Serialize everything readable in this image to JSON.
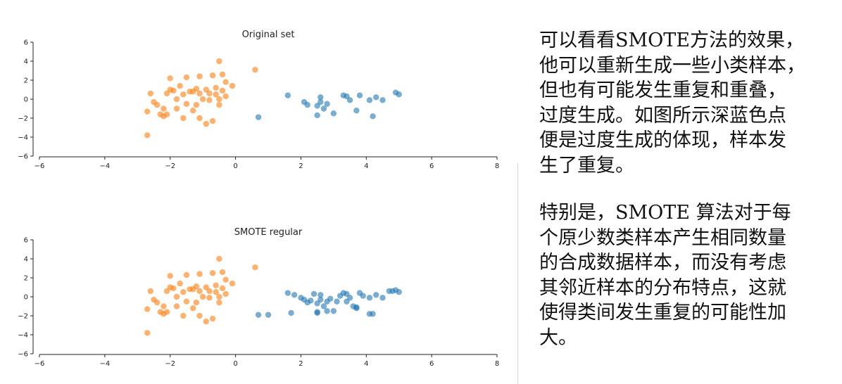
{
  "colors": {
    "minority": "#1f77b4",
    "majority": "#ff7f0e",
    "axis": "#222222"
  },
  "chart_data": [
    {
      "type": "scatter",
      "title": "Original set",
      "xlim": [
        -6,
        8
      ],
      "ylim": [
        -6,
        6
      ],
      "xticks": [
        "−6",
        "−4",
        "−2",
        "0",
        "2",
        "4",
        "6",
        "8"
      ],
      "xtick_values": [
        -6,
        -4,
        -2,
        0,
        2,
        4,
        6,
        8
      ],
      "yticks": [
        "6",
        "4",
        "2",
        "0",
        "−2",
        "−4",
        "−6"
      ],
      "ytick_values": [
        6,
        4,
        2,
        0,
        -2,
        -4,
        -6
      ],
      "grid": false,
      "series": [
        {
          "color": "#ff7f0e",
          "points": [
            [
              -2.7,
              -3.8
            ],
            [
              -2.6,
              0.6
            ],
            [
              -2.7,
              -1.3
            ],
            [
              -2.5,
              -0.3
            ],
            [
              -2.4,
              -0.6
            ],
            [
              -2.3,
              -1.6
            ],
            [
              -2.2,
              -1.0
            ],
            [
              -2.2,
              -1.8
            ],
            [
              -2.1,
              0.6
            ],
            [
              -2.1,
              -1.6
            ],
            [
              -2.0,
              1.0
            ],
            [
              -2.0,
              2.2
            ],
            [
              -1.9,
              0.9
            ],
            [
              -1.8,
              0.0
            ],
            [
              -1.8,
              -1.0
            ],
            [
              -1.7,
              1.4
            ],
            [
              -1.6,
              0.5
            ],
            [
              -1.6,
              -2.0
            ],
            [
              -1.5,
              2.3
            ],
            [
              -1.5,
              -0.5
            ],
            [
              -1.4,
              0.8
            ],
            [
              -1.3,
              0.8
            ],
            [
              -1.3,
              -1.2
            ],
            [
              -1.2,
              1.1
            ],
            [
              -1.2,
              -0.6
            ],
            [
              -1.1,
              0.6
            ],
            [
              -1.1,
              2.4
            ],
            [
              -1.1,
              -2.0
            ],
            [
              -1.0,
              0.0
            ],
            [
              -0.9,
              1.0
            ],
            [
              -0.9,
              -2.6
            ],
            [
              -0.8,
              0.6
            ],
            [
              -0.8,
              -0.1
            ],
            [
              -0.7,
              2.5
            ],
            [
              -0.7,
              -2.3
            ],
            [
              -0.6,
              0.5
            ],
            [
              -0.6,
              1.2
            ],
            [
              -0.5,
              4.0
            ],
            [
              -0.5,
              -0.6
            ],
            [
              -0.5,
              0.0
            ],
            [
              -0.4,
              0.9
            ],
            [
              -0.4,
              2.6
            ],
            [
              -0.3,
              1.8
            ],
            [
              -0.3,
              0.3
            ],
            [
              -0.1,
              1.4
            ],
            [
              0.6,
              3.1
            ]
          ]
        },
        {
          "color": "#1f77b4",
          "points": [
            [
              0.7,
              -1.9
            ],
            [
              1.6,
              0.4
            ],
            [
              2.1,
              -0.3
            ],
            [
              2.2,
              -0.6
            ],
            [
              2.5,
              -0.7
            ],
            [
              2.5,
              -1.7
            ],
            [
              2.6,
              0.2
            ],
            [
              2.6,
              -0.3
            ],
            [
              2.7,
              -1.0
            ],
            [
              2.8,
              -0.5
            ],
            [
              3.0,
              -1.5
            ],
            [
              3.3,
              0.4
            ],
            [
              3.4,
              0.3
            ],
            [
              3.5,
              -0.1
            ],
            [
              3.7,
              -1.2
            ],
            [
              3.8,
              0.4
            ],
            [
              4.1,
              -0.1
            ],
            [
              4.2,
              -1.8
            ],
            [
              4.3,
              0.2
            ],
            [
              4.5,
              -0.1
            ],
            [
              4.9,
              0.7
            ],
            [
              5.0,
              0.5
            ]
          ]
        }
      ]
    },
    {
      "type": "scatter",
      "title": "SMOTE regular",
      "xlim": [
        -6,
        8
      ],
      "ylim": [
        -6,
        6
      ],
      "xticks": [
        "−6",
        "−4",
        "−2",
        "0",
        "2",
        "4",
        "6",
        "8"
      ],
      "xtick_values": [
        -6,
        -4,
        -2,
        0,
        2,
        4,
        6,
        8
      ],
      "yticks": [
        "6",
        "4",
        "2",
        "0",
        "−2",
        "−4",
        "−6"
      ],
      "ytick_values": [
        6,
        4,
        2,
        0,
        -2,
        -4,
        -6
      ],
      "grid": false,
      "series": [
        {
          "color": "#ff7f0e",
          "points": [
            [
              -2.7,
              -3.8
            ],
            [
              -2.6,
              0.6
            ],
            [
              -2.7,
              -1.3
            ],
            [
              -2.5,
              -0.3
            ],
            [
              -2.4,
              -0.6
            ],
            [
              -2.3,
              -1.6
            ],
            [
              -2.2,
              -1.0
            ],
            [
              -2.2,
              -1.8
            ],
            [
              -2.1,
              0.6
            ],
            [
              -2.1,
              -1.6
            ],
            [
              -2.0,
              1.0
            ],
            [
              -2.0,
              2.2
            ],
            [
              -1.9,
              0.9
            ],
            [
              -1.8,
              0.0
            ],
            [
              -1.8,
              -1.0
            ],
            [
              -1.7,
              1.4
            ],
            [
              -1.6,
              0.5
            ],
            [
              -1.6,
              -2.0
            ],
            [
              -1.5,
              2.3
            ],
            [
              -1.5,
              -0.5
            ],
            [
              -1.4,
              0.8
            ],
            [
              -1.3,
              0.8
            ],
            [
              -1.3,
              -1.2
            ],
            [
              -1.2,
              1.1
            ],
            [
              -1.2,
              -0.6
            ],
            [
              -1.1,
              0.6
            ],
            [
              -1.1,
              2.4
            ],
            [
              -1.1,
              -2.0
            ],
            [
              -1.0,
              0.0
            ],
            [
              -0.9,
              1.0
            ],
            [
              -0.9,
              -2.6
            ],
            [
              -0.8,
              0.6
            ],
            [
              -0.8,
              -0.1
            ],
            [
              -0.7,
              2.5
            ],
            [
              -0.7,
              -2.3
            ],
            [
              -0.6,
              0.5
            ],
            [
              -0.6,
              1.2
            ],
            [
              -0.5,
              4.0
            ],
            [
              -0.5,
              -0.6
            ],
            [
              -0.5,
              0.0
            ],
            [
              -0.4,
              0.9
            ],
            [
              -0.4,
              2.6
            ],
            [
              -0.3,
              1.8
            ],
            [
              -0.3,
              0.3
            ],
            [
              -0.1,
              1.4
            ],
            [
              0.6,
              3.1
            ]
          ]
        },
        {
          "color": "#1f77b4",
          "points": [
            [
              0.7,
              -1.9
            ],
            [
              1.0,
              -1.9
            ],
            [
              1.6,
              0.4
            ],
            [
              1.7,
              -1.7
            ],
            [
              1.8,
              0.2
            ],
            [
              2.0,
              -0.1
            ],
            [
              2.1,
              -0.3
            ],
            [
              2.2,
              -0.6
            ],
            [
              2.3,
              -0.4
            ],
            [
              2.4,
              0.3
            ],
            [
              2.5,
              -0.7
            ],
            [
              2.5,
              -1.7
            ],
            [
              2.5,
              -1.6
            ],
            [
              2.6,
              0.2
            ],
            [
              2.6,
              -0.3
            ],
            [
              2.7,
              -1.0
            ],
            [
              2.8,
              -0.5
            ],
            [
              2.9,
              -0.2
            ],
            [
              2.8,
              -1.5
            ],
            [
              3.0,
              -1.5
            ],
            [
              3.1,
              -0.5
            ],
            [
              3.2,
              0.1
            ],
            [
              3.3,
              0.4
            ],
            [
              3.4,
              0.3
            ],
            [
              3.4,
              -0.5
            ],
            [
              3.5,
              -0.1
            ],
            [
              3.6,
              -1.0
            ],
            [
              3.7,
              -1.2
            ],
            [
              3.7,
              -1.1
            ],
            [
              3.8,
              0.4
            ],
            [
              3.9,
              0.1
            ],
            [
              4.1,
              -0.1
            ],
            [
              4.2,
              -1.8
            ],
            [
              4.1,
              -1.8
            ],
            [
              4.3,
              0.2
            ],
            [
              4.5,
              -0.1
            ],
            [
              4.7,
              0.6
            ],
            [
              4.8,
              0.6
            ],
            [
              4.9,
              0.7
            ],
            [
              5.0,
              0.5
            ]
          ]
        }
      ]
    }
  ],
  "text_panel": {
    "paragraphs": [
      {
        "lines": [
          "可以看看SMOTE方法的效果，",
          "他可以重新生成一些小类样本，",
          "但也有可能发生重复和重叠，",
          "过度生成。如图所示深蓝色点",
          "便是过度生成的体现，样本发",
          "生了重复。"
        ]
      },
      {
        "lines": [
          "特别是，SMOTE 算法对于每",
          "个原少数类样本产生相同数量",
          "的合成数据样本，而没有考虑",
          "其邻近样本的分布特点，这就",
          "使得类间发生重复的可能性加",
          "大。"
        ]
      }
    ]
  }
}
